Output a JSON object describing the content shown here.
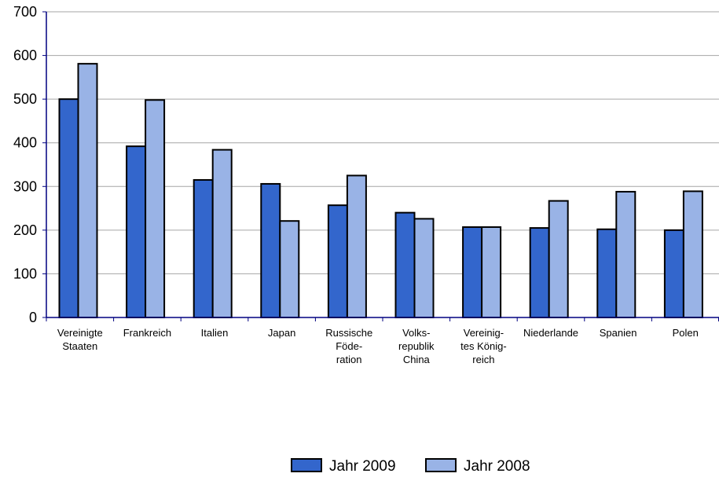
{
  "chart_data": {
    "type": "bar",
    "categories": [
      [
        "Vereinigte",
        "Staaten"
      ],
      [
        "Frankreich"
      ],
      [
        "Italien"
      ],
      [
        "Japan"
      ],
      [
        "Russische",
        "Föde-",
        "ration"
      ],
      [
        "Volks-",
        "republik",
        "China"
      ],
      [
        "Vereinig-",
        "tes König-",
        "reich"
      ],
      [
        "Niederlande"
      ],
      [
        "Spanien"
      ],
      [
        "Polen"
      ]
    ],
    "series": [
      {
        "name": "Jahr 2009",
        "color": "#3366cc",
        "values": [
          500,
          392,
          315,
          306,
          257,
          240,
          207,
          205,
          202,
          200
        ]
      },
      {
        "name": "Jahr 2008",
        "color": "#99b3e6",
        "values": [
          581,
          498,
          384,
          221,
          325,
          226,
          207,
          267,
          288,
          289
        ]
      }
    ],
    "ylim": [
      0,
      700
    ],
    "yticks": [
      0,
      100,
      200,
      300,
      400,
      500,
      600,
      700
    ],
    "grid": true,
    "legend_position": "bottom"
  }
}
